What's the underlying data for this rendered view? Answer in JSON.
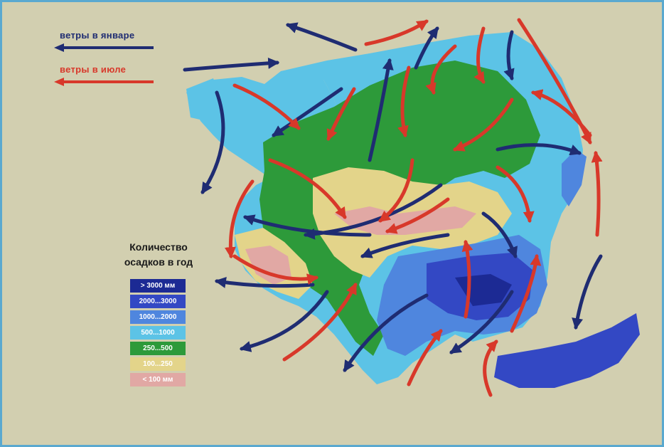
{
  "legend": {
    "winds": [
      {
        "label": "ветры в январе",
        "color": "#1f2c72"
      },
      {
        "label": "ветры в июле",
        "color": "#d8382a"
      }
    ],
    "precipitation": {
      "title_line1": "Количество",
      "title_line2": "осадков в год",
      "items": [
        {
          "label": "> 3000 мм",
          "color": "#1c2a94"
        },
        {
          "label": "2000...3000",
          "color": "#3348c4"
        },
        {
          "label": "1000...2000",
          "color": "#4f86de"
        },
        {
          "label": "500...1000",
          "color": "#5cc3e6"
        },
        {
          "label": "250...500",
          "color": "#2d9a3a"
        },
        {
          "label": "100...250",
          "color": "#e3d48a"
        },
        {
          "label": "< 100 мм",
          "color": "#e1a8a4"
        }
      ]
    }
  },
  "colors": {
    "background": "#d2cfb0",
    "frame": "#5aa9cf"
  }
}
